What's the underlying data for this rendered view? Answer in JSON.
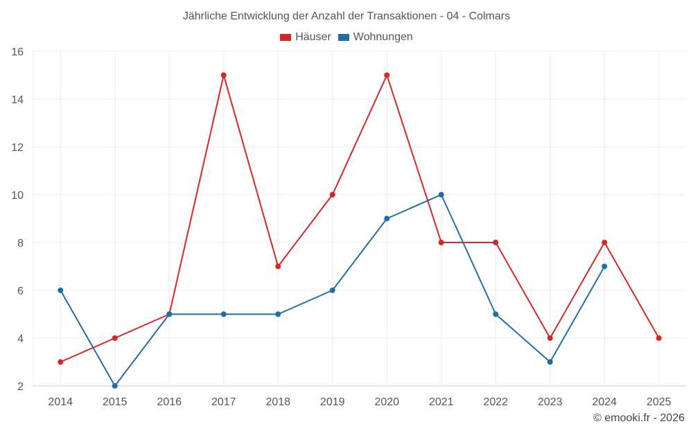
{
  "chart_data": {
    "type": "line",
    "title": "Jährliche Entwicklung der Anzahl der Transaktionen - 04 - Colmars",
    "xlabel": "",
    "ylabel": "",
    "categories": [
      "2014",
      "2015",
      "2016",
      "2017",
      "2018",
      "2019",
      "2020",
      "2021",
      "2022",
      "2023",
      "2024",
      "2025"
    ],
    "ylim": [
      2,
      16
    ],
    "yticks": [
      2,
      4,
      6,
      8,
      10,
      12,
      14,
      16
    ],
    "grid": true,
    "legend_position": "top-center",
    "series": [
      {
        "name": "Häuser",
        "color": "#d62728",
        "values": [
          3,
          4,
          5,
          15,
          7,
          10,
          15,
          8,
          8,
          4,
          8,
          4
        ]
      },
      {
        "name": "Wohnungen",
        "color": "#1f6fa5",
        "values": [
          6,
          2,
          5,
          5,
          5,
          6,
          9,
          10,
          5,
          3,
          7,
          null
        ]
      }
    ]
  },
  "credit": "© emooki.fr - 2026"
}
